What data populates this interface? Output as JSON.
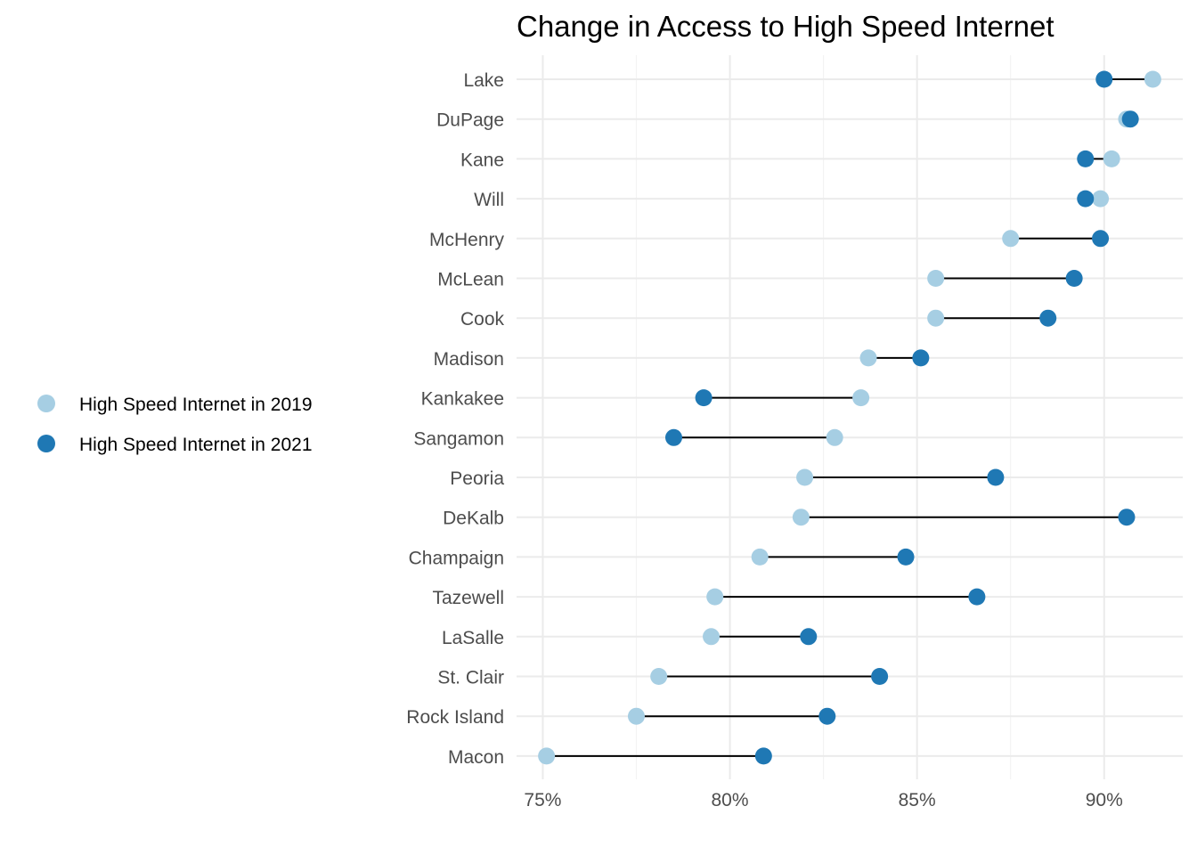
{
  "chart_data": {
    "type": "dumbbell",
    "title": "Change in Access to High Speed Internet",
    "xlabel": "",
    "ylabel": "",
    "xlim": [
      74.3,
      92.1
    ],
    "xticks": [
      75,
      80,
      85,
      90
    ],
    "xtick_labels": [
      "75%",
      "80%",
      "85%",
      "90%"
    ],
    "grid": true,
    "legend_position": "left",
    "categories": [
      "Lake",
      "DuPage",
      "Kane",
      "Will",
      "McHenry",
      "McLean",
      "Cook",
      "Madison",
      "Kankakee",
      "Sangamon",
      "Peoria",
      "DeKalb",
      "Champaign",
      "Tazewell",
      "LaSalle",
      "St. Clair",
      "Rock Island",
      "Macon"
    ],
    "series": [
      {
        "name": "High Speed Internet in 2019",
        "color": "#a6cee3",
        "values": [
          91.3,
          90.6,
          90.2,
          89.9,
          87.5,
          85.5,
          85.5,
          83.7,
          83.5,
          82.8,
          82.0,
          81.9,
          80.8,
          79.6,
          79.5,
          78.1,
          77.5,
          75.1
        ]
      },
      {
        "name": "High Speed Internet in 2021",
        "color": "#1f78b4",
        "values": [
          90.0,
          90.7,
          89.5,
          89.5,
          89.9,
          89.2,
          88.5,
          85.1,
          79.3,
          78.5,
          87.1,
          90.6,
          84.7,
          86.6,
          82.1,
          84.0,
          82.6,
          80.9
        ]
      }
    ]
  }
}
